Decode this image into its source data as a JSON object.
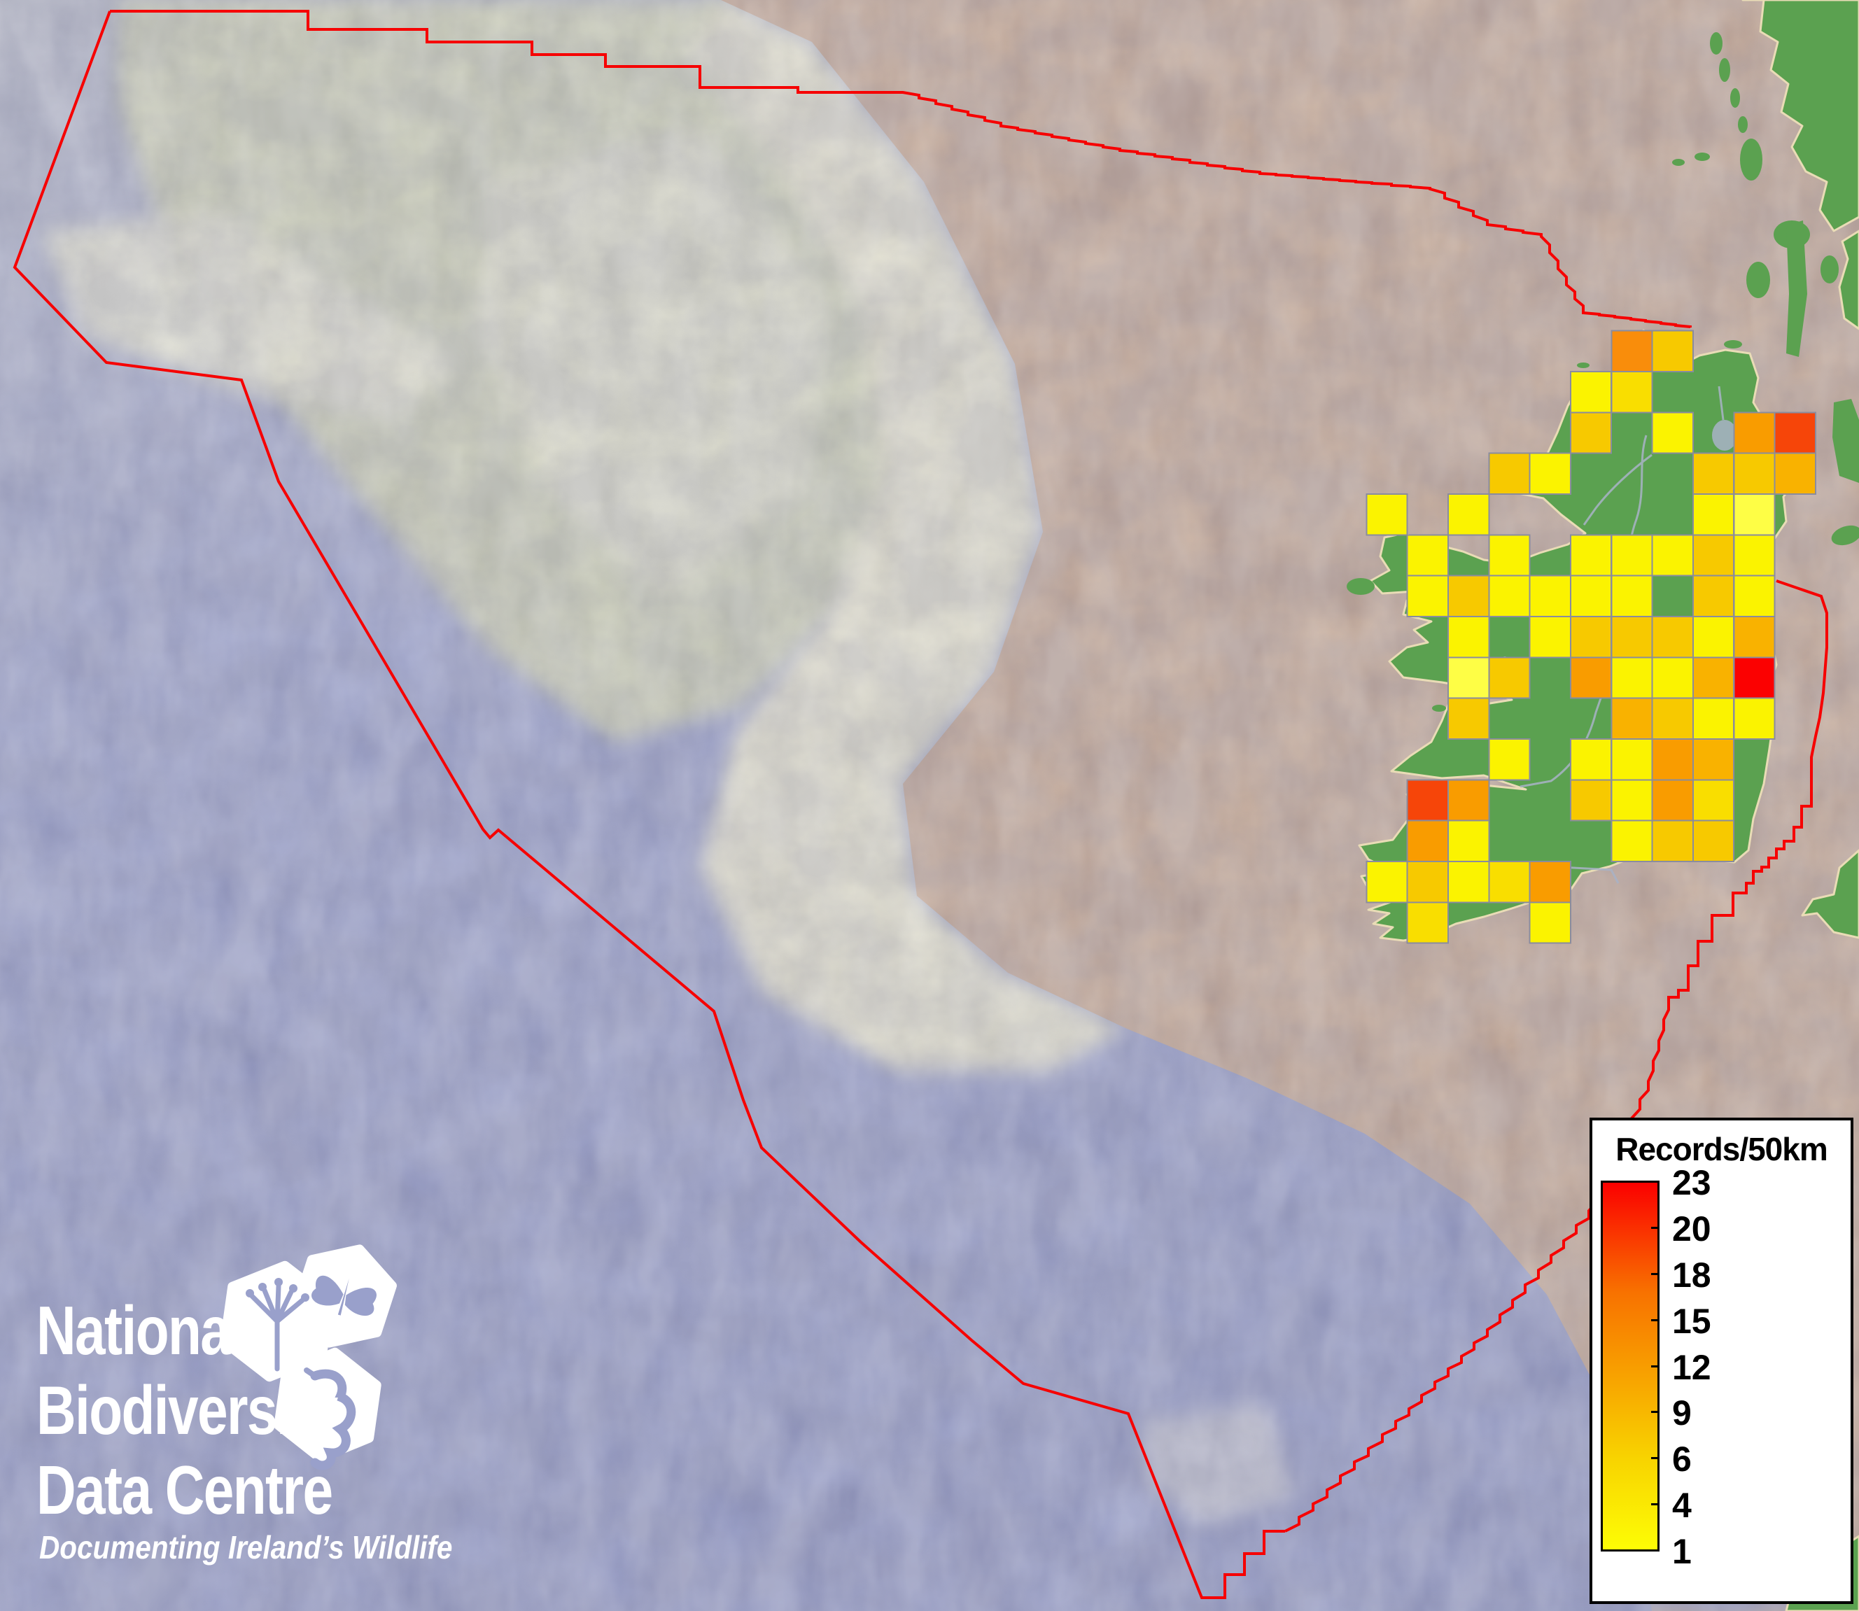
{
  "page": {
    "description": "Bathymetric map of Ireland and its Atlantic EEZ with a 50km heat-grid of biodiversity records"
  },
  "palette": {
    "ocean_deep": "#8f96c5",
    "ocean_light": "#b9bcc9",
    "shelf_tan": "#c9a88e",
    "slope_cream": "#ebe8cf",
    "bank_khaki": "#cfd2b4",
    "bank_light": "#e9e8d2",
    "pale_patch": "#c6c6d2",
    "land_green": "#5ba150",
    "coast_sand": "#e9dcb6",
    "river_grey": "#a9b3c7",
    "boundary_red": "#f60000",
    "grid_line": "#8a8c9e",
    "legend_bg": "#ffffff",
    "legend_border": "#000000",
    "logo_white": "#ffffff"
  },
  "heat_palette": {
    "yellow": "#FBF300",
    "pale_yellow": "#FEFE45",
    "gold_yellow": "#F9DE00",
    "gold": "#F7C900",
    "gold_orange": "#F9B200",
    "orange": "#F99C00",
    "deep_orange": "#F98D0B",
    "red_orange": "#F64509",
    "red": "#FB0101"
  },
  "legend": {
    "title": "Records/50km",
    "tick_labels": [
      "23",
      "20",
      "18",
      "15",
      "12",
      "9",
      "6",
      "4",
      "1"
    ],
    "gradient": [
      "#FB0000",
      "#F87200",
      "#F8A700",
      "#F8D300",
      "#FDFD05"
    ],
    "gradient_pos": [
      0,
      30,
      55,
      75,
      100
    ],
    "value_min": 1,
    "value_max": 23
  },
  "logo": {
    "line1": "National",
    "line2": "Biodiversity",
    "line3": "Data Centre",
    "tagline": "Documenting Ireland’s Wildlife",
    "icons": [
      "flower-umbel-icon",
      "butterfly-icon",
      "seahorse-icon"
    ]
  },
  "grid": {
    "unit": "records per 50km grid square",
    "origin_x": 1952.3,
    "origin_y": 472.7,
    "cell_size": 58.33,
    "cells": [
      [
        6,
        0,
        "deep_orange",
        13
      ],
      [
        7,
        0,
        "gold",
        5
      ],
      [
        5,
        1,
        "yellow",
        1
      ],
      [
        6,
        1,
        "gold_yellow",
        3
      ],
      [
        5,
        2,
        "gold",
        5
      ],
      [
        7,
        2,
        "yellow",
        1
      ],
      [
        9,
        2,
        "orange",
        11
      ],
      [
        10,
        2,
        "red_orange",
        18
      ],
      [
        3,
        3,
        "gold",
        5
      ],
      [
        4,
        3,
        "yellow",
        1
      ],
      [
        8,
        3,
        "gold",
        5
      ],
      [
        9,
        3,
        "gold",
        5
      ],
      [
        10,
        3,
        "gold_orange",
        8
      ],
      [
        0,
        4,
        "yellow",
        1
      ],
      [
        2,
        4,
        "yellow",
        1
      ],
      [
        8,
        4,
        "yellow",
        1
      ],
      [
        9,
        4,
        "pale_yellow",
        1
      ],
      [
        1,
        5,
        "yellow",
        1
      ],
      [
        3,
        5,
        "yellow",
        1
      ],
      [
        5,
        5,
        "yellow",
        1
      ],
      [
        6,
        5,
        "yellow",
        1
      ],
      [
        7,
        5,
        "yellow",
        1
      ],
      [
        8,
        5,
        "gold",
        5
      ],
      [
        9,
        5,
        "yellow",
        1
      ],
      [
        1,
        6,
        "yellow",
        1
      ],
      [
        2,
        6,
        "gold",
        5
      ],
      [
        3,
        6,
        "yellow",
        1
      ],
      [
        4,
        6,
        "yellow",
        1
      ],
      [
        5,
        6,
        "yellow",
        1
      ],
      [
        6,
        6,
        "yellow",
        1
      ],
      [
        8,
        6,
        "gold",
        5
      ],
      [
        9,
        6,
        "yellow",
        1
      ],
      [
        2,
        7,
        "yellow",
        1
      ],
      [
        4,
        7,
        "yellow",
        1
      ],
      [
        5,
        7,
        "gold",
        5
      ],
      [
        6,
        7,
        "gold",
        5
      ],
      [
        7,
        7,
        "gold",
        5
      ],
      [
        8,
        7,
        "yellow",
        1
      ],
      [
        9,
        7,
        "gold_orange",
        8
      ],
      [
        2,
        8,
        "pale_yellow",
        1
      ],
      [
        3,
        8,
        "gold",
        5
      ],
      [
        5,
        8,
        "orange",
        11
      ],
      [
        6,
        8,
        "yellow",
        1
      ],
      [
        7,
        8,
        "yellow",
        1
      ],
      [
        8,
        8,
        "gold_orange",
        8
      ],
      [
        9,
        8,
        "red",
        23
      ],
      [
        2,
        9,
        "gold",
        5
      ],
      [
        6,
        9,
        "gold_orange",
        8
      ],
      [
        7,
        9,
        "gold",
        5
      ],
      [
        8,
        9,
        "yellow",
        1
      ],
      [
        9,
        9,
        "yellow",
        1
      ],
      [
        3,
        10,
        "yellow",
        1
      ],
      [
        5,
        10,
        "yellow",
        1
      ],
      [
        6,
        10,
        "yellow",
        1
      ],
      [
        7,
        10,
        "orange",
        11
      ],
      [
        8,
        10,
        "gold_orange",
        8
      ],
      [
        1,
        11,
        "red_orange",
        18
      ],
      [
        2,
        11,
        "orange",
        11
      ],
      [
        5,
        11,
        "gold",
        5
      ],
      [
        6,
        11,
        "yellow",
        1
      ],
      [
        7,
        11,
        "orange",
        11
      ],
      [
        8,
        11,
        "gold_yellow",
        3
      ],
      [
        1,
        12,
        "orange",
        11
      ],
      [
        2,
        12,
        "yellow",
        1
      ],
      [
        6,
        12,
        "yellow",
        1
      ],
      [
        7,
        12,
        "gold",
        5
      ],
      [
        8,
        12,
        "gold",
        5
      ],
      [
        0,
        13,
        "yellow",
        1
      ],
      [
        1,
        13,
        "gold",
        5
      ],
      [
        2,
        13,
        "yellow",
        1
      ],
      [
        3,
        13,
        "gold_yellow",
        3
      ],
      [
        4,
        13,
        "orange",
        11
      ],
      [
        1,
        14,
        "gold_yellow",
        3
      ],
      [
        4,
        14,
        "yellow",
        1
      ]
    ]
  }
}
